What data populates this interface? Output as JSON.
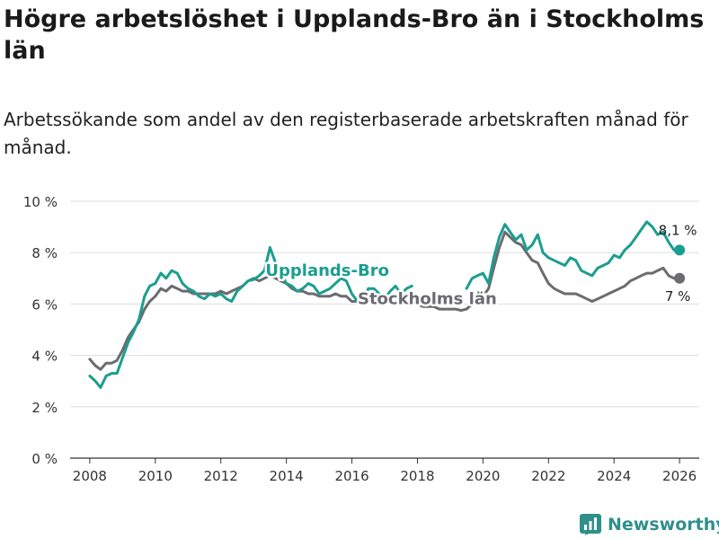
{
  "title": "Högre arbetslöshet i Upplands-Bro än i Stockholms län",
  "subtitle": "Arbetssökande som andel av den registerbaserade arbetskraften månad för månad.",
  "brand": {
    "name": "Newsworthy",
    "color": "#2f8f8a"
  },
  "colors": {
    "upplands": "#1a9e8f",
    "stockholm": "#6b6b70",
    "grid": "#dddddd",
    "axis": "#333333"
  },
  "chart_data": {
    "type": "line",
    "title": "Högre arbetslöshet i Upplands-Bro än i Stockholms län",
    "xlabel": "",
    "ylabel": "",
    "xlim": [
      2007.4,
      2026.6
    ],
    "ylim": [
      0,
      10
    ],
    "x_ticks": [
      2008,
      2010,
      2012,
      2014,
      2016,
      2018,
      2020,
      2022,
      2024,
      2026
    ],
    "x_tick_labels": [
      "2008",
      "2010",
      "2012",
      "2014",
      "2016",
      "2018",
      "2020",
      "2022",
      "2024",
      "2026"
    ],
    "y_ticks": [
      0,
      2,
      4,
      6,
      8,
      10
    ],
    "y_tick_labels": [
      "0 %",
      "2 %",
      "4 %",
      "6 %",
      "8 %",
      "10 %"
    ],
    "grid": true,
    "series": [
      {
        "name": "Upplands-Bro",
        "label": "Upplands-Bro",
        "end_label": "8,1 %",
        "points": [
          [
            2008.0,
            3.2
          ],
          [
            2008.17,
            3.0
          ],
          [
            2008.33,
            2.75
          ],
          [
            2008.5,
            3.2
          ],
          [
            2008.67,
            3.3
          ],
          [
            2008.83,
            3.3
          ],
          [
            2009.0,
            3.9
          ],
          [
            2009.17,
            4.5
          ],
          [
            2009.33,
            4.9
          ],
          [
            2009.5,
            5.4
          ],
          [
            2009.67,
            6.3
          ],
          [
            2009.83,
            6.7
          ],
          [
            2010.0,
            6.8
          ],
          [
            2010.17,
            7.2
          ],
          [
            2010.33,
            7.0
          ],
          [
            2010.5,
            7.3
          ],
          [
            2010.67,
            7.2
          ],
          [
            2010.83,
            6.8
          ],
          [
            2011.0,
            6.6
          ],
          [
            2011.17,
            6.5
          ],
          [
            2011.33,
            6.3
          ],
          [
            2011.5,
            6.2
          ],
          [
            2011.67,
            6.4
          ],
          [
            2011.83,
            6.3
          ],
          [
            2012.0,
            6.4
          ],
          [
            2012.17,
            6.2
          ],
          [
            2012.33,
            6.1
          ],
          [
            2012.5,
            6.5
          ],
          [
            2012.67,
            6.7
          ],
          [
            2012.83,
            6.9
          ],
          [
            2013.0,
            6.95
          ],
          [
            2013.17,
            7.1
          ],
          [
            2013.33,
            7.3
          ],
          [
            2013.5,
            8.2
          ],
          [
            2013.67,
            7.6
          ],
          [
            2013.83,
            7.2
          ],
          [
            2014.0,
            6.8
          ],
          [
            2014.17,
            6.7
          ],
          [
            2014.33,
            6.5
          ],
          [
            2014.5,
            6.6
          ],
          [
            2014.67,
            6.8
          ],
          [
            2014.83,
            6.7
          ],
          [
            2015.0,
            6.4
          ],
          [
            2015.17,
            6.5
          ],
          [
            2015.33,
            6.6
          ],
          [
            2015.5,
            6.8
          ],
          [
            2015.67,
            7.0
          ],
          [
            2015.83,
            6.9
          ],
          [
            2016.0,
            6.4
          ],
          [
            2016.17,
            6.1
          ],
          [
            2016.33,
            6.0
          ],
          [
            2016.5,
            6.6
          ],
          [
            2016.67,
            6.6
          ],
          [
            2016.83,
            6.4
          ],
          [
            2017.0,
            6.2
          ],
          [
            2017.17,
            6.5
          ],
          [
            2017.33,
            6.7
          ],
          [
            2017.5,
            6.4
          ],
          [
            2017.67,
            6.6
          ],
          [
            2017.83,
            6.7
          ],
          null,
          [
            2019.5,
            6.6
          ],
          [
            2019.67,
            7.0
          ],
          [
            2019.83,
            7.1
          ],
          [
            2020.0,
            7.2
          ],
          [
            2020.17,
            6.8
          ],
          [
            2020.33,
            7.8
          ],
          [
            2020.5,
            8.6
          ],
          [
            2020.67,
            9.1
          ],
          [
            2020.83,
            8.8
          ],
          [
            2021.0,
            8.5
          ],
          [
            2021.17,
            8.7
          ],
          [
            2021.33,
            8.1
          ],
          [
            2021.5,
            8.3
          ],
          [
            2021.67,
            8.7
          ],
          [
            2021.83,
            8.0
          ],
          [
            2022.0,
            7.8
          ],
          [
            2022.17,
            7.7
          ],
          [
            2022.33,
            7.6
          ],
          [
            2022.5,
            7.5
          ],
          [
            2022.67,
            7.8
          ],
          [
            2022.83,
            7.7
          ],
          [
            2023.0,
            7.3
          ],
          [
            2023.17,
            7.2
          ],
          [
            2023.33,
            7.1
          ],
          [
            2023.5,
            7.4
          ],
          [
            2023.67,
            7.5
          ],
          [
            2023.83,
            7.6
          ],
          [
            2024.0,
            7.9
          ],
          [
            2024.17,
            7.8
          ],
          [
            2024.33,
            8.1
          ],
          [
            2024.5,
            8.3
          ],
          [
            2024.67,
            8.6
          ],
          [
            2024.83,
            8.9
          ],
          [
            2025.0,
            9.2
          ],
          [
            2025.17,
            9.0
          ],
          [
            2025.33,
            8.7
          ],
          [
            2025.5,
            8.8
          ],
          [
            2025.67,
            8.4
          ],
          [
            2025.83,
            8.1
          ],
          [
            2026.0,
            8.1
          ]
        ]
      },
      {
        "name": "Stockholms län",
        "label": "Stockholms län",
        "end_label": "7 %",
        "points": [
          [
            2008.0,
            3.85
          ],
          [
            2008.17,
            3.6
          ],
          [
            2008.33,
            3.45
          ],
          [
            2008.5,
            3.7
          ],
          [
            2008.67,
            3.7
          ],
          [
            2008.83,
            3.8
          ],
          [
            2009.0,
            4.2
          ],
          [
            2009.17,
            4.7
          ],
          [
            2009.33,
            5.0
          ],
          [
            2009.5,
            5.3
          ],
          [
            2009.67,
            5.8
          ],
          [
            2009.83,
            6.1
          ],
          [
            2010.0,
            6.3
          ],
          [
            2010.17,
            6.6
          ],
          [
            2010.33,
            6.5
          ],
          [
            2010.5,
            6.7
          ],
          [
            2010.67,
            6.6
          ],
          [
            2010.83,
            6.5
          ],
          [
            2011.0,
            6.5
          ],
          [
            2011.17,
            6.4
          ],
          [
            2011.33,
            6.4
          ],
          [
            2011.5,
            6.4
          ],
          [
            2011.67,
            6.4
          ],
          [
            2011.83,
            6.4
          ],
          [
            2012.0,
            6.5
          ],
          [
            2012.17,
            6.4
          ],
          [
            2012.33,
            6.5
          ],
          [
            2012.5,
            6.6
          ],
          [
            2012.67,
            6.7
          ],
          [
            2012.83,
            6.9
          ],
          [
            2013.0,
            7.0
          ],
          [
            2013.17,
            6.9
          ],
          [
            2013.33,
            7.0
          ],
          [
            2013.5,
            7.1
          ],
          [
            2013.67,
            7.0
          ],
          [
            2013.83,
            6.9
          ],
          [
            2014.0,
            6.8
          ],
          [
            2014.17,
            6.6
          ],
          [
            2014.33,
            6.5
          ],
          [
            2014.5,
            6.5
          ],
          [
            2014.67,
            6.4
          ],
          [
            2014.83,
            6.4
          ],
          [
            2015.0,
            6.3
          ],
          [
            2015.17,
            6.3
          ],
          [
            2015.33,
            6.3
          ],
          [
            2015.5,
            6.4
          ],
          [
            2015.67,
            6.3
          ],
          [
            2015.83,
            6.3
          ],
          [
            2016.0,
            6.1
          ],
          [
            2016.17,
            6.1
          ],
          [
            2016.33,
            6.0
          ],
          [
            2016.5,
            6.1
          ],
          [
            2016.67,
            6.1
          ],
          [
            2016.83,
            6.0
          ],
          [
            2017.0,
            6.0
          ],
          [
            2017.17,
            6.1
          ],
          [
            2017.33,
            6.0
          ],
          [
            2017.5,
            6.0
          ],
          [
            2017.67,
            6.0
          ],
          [
            2017.83,
            6.0
          ],
          [
            2018.0,
            6.0
          ],
          [
            2018.17,
            5.9
          ],
          [
            2018.33,
            5.9
          ],
          [
            2018.5,
            5.9
          ],
          [
            2018.67,
            5.8
          ],
          [
            2018.83,
            5.8
          ],
          [
            2019.0,
            5.8
          ],
          [
            2019.17,
            5.8
          ],
          [
            2019.33,
            5.75
          ],
          [
            2019.5,
            5.8
          ],
          [
            2019.67,
            6.0
          ],
          [
            2019.83,
            6.2
          ],
          [
            2020.0,
            6.3
          ],
          [
            2020.17,
            6.6
          ],
          [
            2020.33,
            7.4
          ],
          [
            2020.5,
            8.2
          ],
          [
            2020.67,
            8.8
          ],
          [
            2020.83,
            8.6
          ],
          [
            2021.0,
            8.4
          ],
          [
            2021.17,
            8.3
          ],
          [
            2021.33,
            8.0
          ],
          [
            2021.5,
            7.7
          ],
          [
            2021.67,
            7.6
          ],
          [
            2021.83,
            7.2
          ],
          [
            2022.0,
            6.8
          ],
          [
            2022.17,
            6.6
          ],
          [
            2022.33,
            6.5
          ],
          [
            2022.5,
            6.4
          ],
          [
            2022.67,
            6.4
          ],
          [
            2022.83,
            6.4
          ],
          [
            2023.0,
            6.3
          ],
          [
            2023.17,
            6.2
          ],
          [
            2023.33,
            6.1
          ],
          [
            2023.5,
            6.2
          ],
          [
            2023.67,
            6.3
          ],
          [
            2023.83,
            6.4
          ],
          [
            2024.0,
            6.5
          ],
          [
            2024.17,
            6.6
          ],
          [
            2024.33,
            6.7
          ],
          [
            2024.5,
            6.9
          ],
          [
            2024.67,
            7.0
          ],
          [
            2024.83,
            7.1
          ],
          [
            2025.0,
            7.2
          ],
          [
            2025.17,
            7.2
          ],
          [
            2025.33,
            7.3
          ],
          [
            2025.5,
            7.4
          ],
          [
            2025.67,
            7.1
          ],
          [
            2025.83,
            7.0
          ],
          [
            2026.0,
            7.0
          ]
        ]
      }
    ]
  }
}
